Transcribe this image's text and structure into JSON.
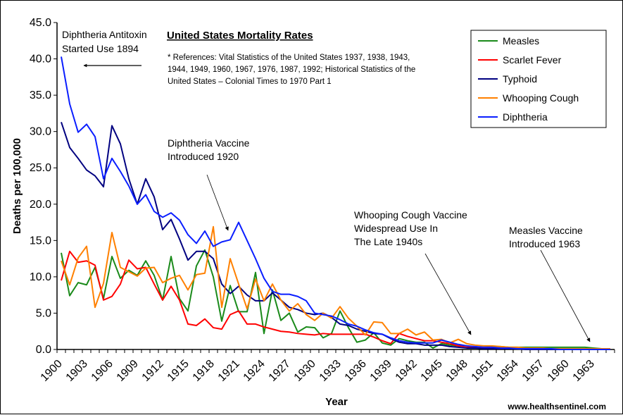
{
  "chart_data": {
    "type": "line",
    "title": "United States Mortality Rates",
    "xlabel": "Year",
    "ylabel": "Deaths per 100,000",
    "ylim": [
      0,
      45
    ],
    "yticks": [
      "0.0",
      "5.0",
      "10.0",
      "15.0",
      "20.0",
      "25.0",
      "30.0",
      "35.0",
      "40.0",
      "45.0"
    ],
    "x_start": 1900,
    "x_end": 1965,
    "xtick_labels": [
      "1900",
      "1903",
      "1906",
      "1909",
      "1912",
      "1915",
      "1918",
      "1921",
      "1924",
      "1927",
      "1930",
      "1933",
      "1936",
      "1939",
      "1942",
      "1945",
      "1948",
      "1951",
      "1954",
      "1957",
      "1960",
      "1963"
    ],
    "grid": false,
    "legend_position": "top-right",
    "series": [
      {
        "name": "Measles",
        "color": "#1a8a1a",
        "values": [
          13.3,
          7.4,
          9.2,
          8.9,
          11.3,
          7.0,
          12.8,
          9.8,
          10.9,
          10.2,
          12.2,
          10.2,
          6.8,
          12.8,
          7.0,
          5.3,
          11.5,
          13.7,
          10.0,
          3.9,
          8.8,
          5.2,
          5.2,
          10.6,
          2.2,
          8.2,
          4.0,
          5.0,
          2.4,
          3.1,
          3.0,
          1.6,
          2.2,
          5.3,
          3.0,
          1.0,
          1.3,
          2.3,
          0.9,
          0.6,
          1.5,
          1.2,
          1.0,
          1.0,
          0.2,
          0.8,
          0.6,
          0.5,
          0.5,
          0.3,
          0.3,
          0.4,
          0.4,
          0.3,
          0.3,
          0.3,
          0.3,
          0.3,
          0.3,
          0.3,
          0.3,
          0.3,
          0.3,
          0.2,
          0.1,
          0.1
        ]
      },
      {
        "name": "Scarlet Fever",
        "color": "#ff0000",
        "values": [
          9.5,
          13.5,
          12.0,
          12.2,
          11.6,
          6.8,
          7.3,
          9.0,
          12.3,
          11.1,
          11.3,
          9.0,
          6.8,
          8.7,
          6.8,
          3.5,
          3.3,
          4.2,
          3.0,
          2.8,
          4.8,
          5.3,
          3.5,
          3.5,
          3.1,
          2.8,
          2.5,
          2.4,
          2.2,
          2.1,
          2.0,
          2.2,
          2.1,
          2.1,
          2.1,
          2.1,
          2.1,
          1.7,
          1.2,
          0.8,
          2.2,
          1.8,
          1.5,
          1.2,
          1.2,
          1.0,
          0.8,
          0.5,
          0.4,
          0.3,
          0.2,
          0.2,
          0.1,
          0.1,
          0.1,
          0.1,
          0.1,
          0.1,
          0.1,
          0.1,
          0.1,
          0.1,
          0.1,
          0.1,
          0.1,
          0.1
        ]
      },
      {
        "name": "Typhoid",
        "color": "#000080",
        "values": [
          31.3,
          27.8,
          26.3,
          24.7,
          23.9,
          22.4,
          30.8,
          28.3,
          23.5,
          20.0,
          23.5,
          21.0,
          16.5,
          17.9,
          15.2,
          12.3,
          13.5,
          13.5,
          12.5,
          9.0,
          7.7,
          8.7,
          7.5,
          6.7,
          6.7,
          7.8,
          6.8,
          5.8,
          5.5,
          5.0,
          4.8,
          5.0,
          4.4,
          3.5,
          3.3,
          2.8,
          2.5,
          2.2,
          2.1,
          1.5,
          1.0,
          0.8,
          0.8,
          0.6,
          0.6,
          0.6,
          0.4,
          0.3,
          0.2,
          0.2,
          0.1,
          0.1,
          0.1,
          0.1,
          0.1,
          0.0,
          0,
          0,
          0,
          0,
          0,
          0,
          0,
          0,
          0,
          0
        ]
      },
      {
        "name": "Whooping Cough",
        "color": "#ff8000",
        "values": [
          12.2,
          8.9,
          12.6,
          14.2,
          5.8,
          9.1,
          16.1,
          11.3,
          10.7,
          10.1,
          11.2,
          11.3,
          9.2,
          9.8,
          10.2,
          8.2,
          10.3,
          10.5,
          16.9,
          5.8,
          12.5,
          9.0,
          5.6,
          9.7,
          6.7,
          9.0,
          6.8,
          5.3,
          6.3,
          4.8,
          4.0,
          5.0,
          4.3,
          5.9,
          4.3,
          3.2,
          2.0,
          3.8,
          3.7,
          2.2,
          2.2,
          2.8,
          2.0,
          2.4,
          1.3,
          1.4,
          0.9,
          1.4,
          0.8,
          0.6,
          0.5,
          0.5,
          0.4,
          0.3,
          0.3,
          0.2,
          0.2,
          0.2,
          0.1,
          0.1,
          0.1,
          0.1,
          0.1,
          0.1,
          0.1,
          0.1
        ]
      },
      {
        "name": "Diphtheria",
        "color": "#0a1eff",
        "values": [
          40.3,
          33.8,
          29.9,
          31.0,
          29.3,
          23.5,
          26.3,
          24.5,
          22.5,
          20.0,
          21.3,
          19.0,
          18.2,
          18.8,
          17.8,
          15.8,
          14.6,
          16.3,
          14.2,
          14.8,
          15.1,
          17.5,
          15.0,
          12.5,
          9.8,
          8.0,
          7.6,
          7.6,
          7.3,
          6.7,
          5.0,
          4.8,
          4.6,
          4.1,
          3.5,
          3.2,
          2.7,
          2.3,
          2.1,
          1.6,
          1.2,
          1.0,
          0.9,
          0.9,
          0.9,
          1.3,
          1.0,
          0.7,
          0.5,
          0.4,
          0.3,
          0.3,
          0.2,
          0.2,
          0.1,
          0.1,
          0.1,
          0.1,
          0.1,
          0.0,
          0,
          0,
          0,
          0,
          0,
          0
        ]
      }
    ],
    "annotations": {
      "antitoxin": [
        "Diphtheria Antitoxin",
        "Started Use 1894"
      ],
      "references": [
        "* References: Vital Statistics of the United States 1937, 1938, 1943,",
        "1944, 1949, 1960, 1967, 1976, 1987, 1992; Historical Statistics of the",
        "United States – Colonial Times to 1970 Part 1"
      ],
      "diphtheria_vaccine": [
        "Diphtheria Vaccine",
        "Introduced 1920"
      ],
      "whooping_vaccine": [
        "Whooping Cough Vaccine",
        "Widespread Use In",
        "The Late 1940s"
      ],
      "measles_vaccine": [
        "Measles Vaccine",
        "Introduced 1963"
      ]
    },
    "source": "www.healthsentinel.com"
  }
}
